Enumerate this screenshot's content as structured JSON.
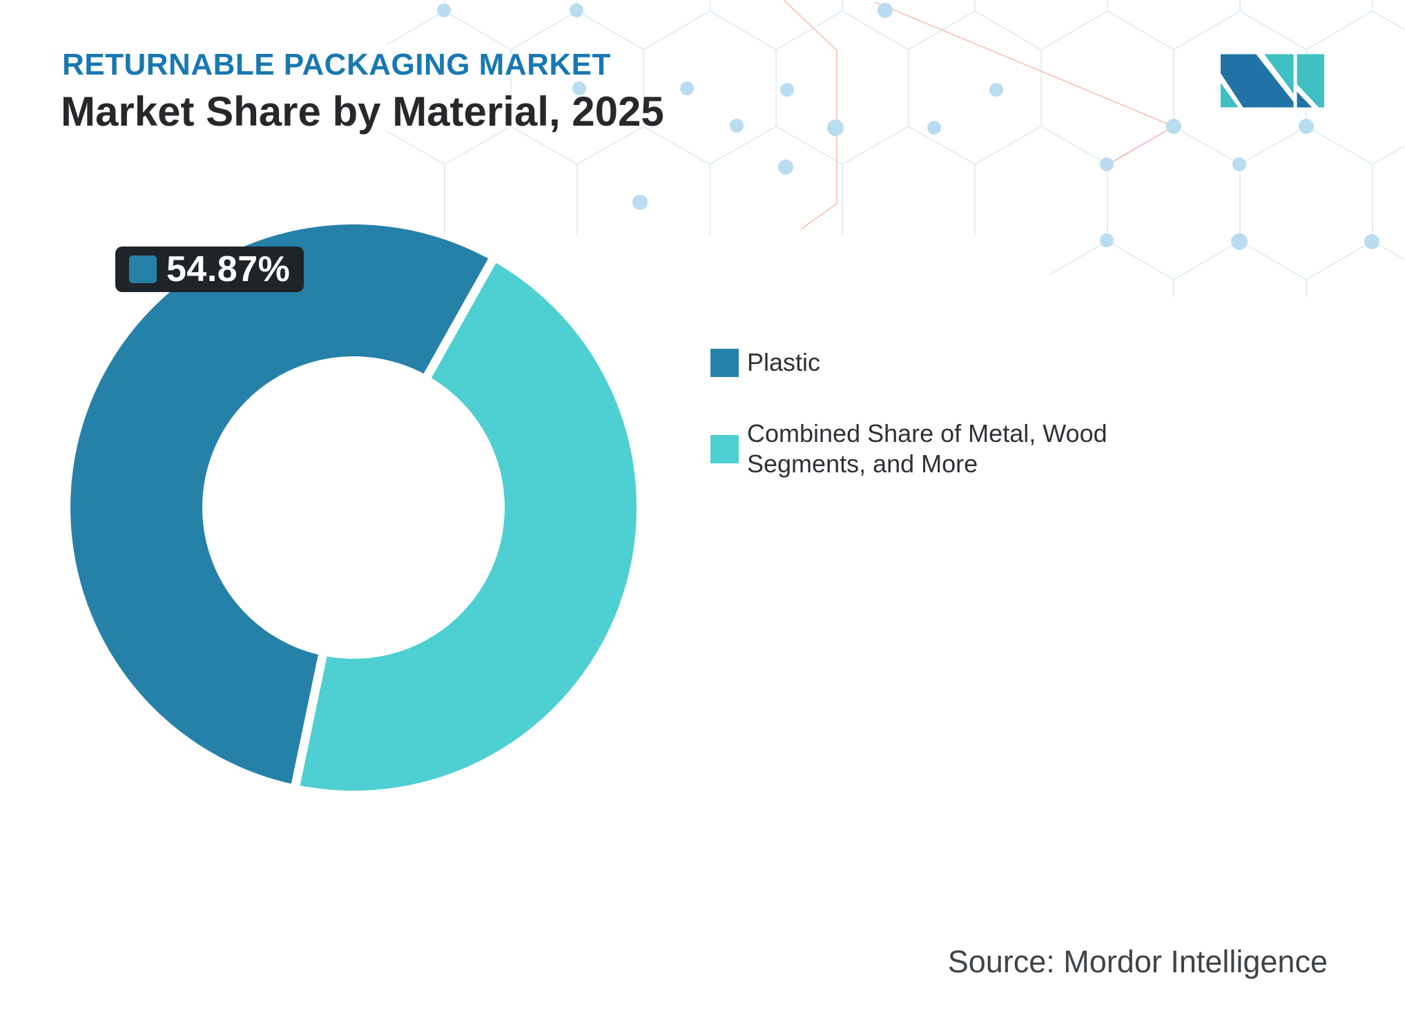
{
  "header": {
    "title": "RETURNABLE PACKAGING MARKET",
    "subtitle": "Market Share by Material, 2025",
    "title_color": "#1878B2",
    "subtitle_color": "#26282B"
  },
  "logo": {
    "name": "mordor-intelligence-logo",
    "blue": "#2173A6",
    "teal": "#3FBFC1"
  },
  "chart_data": {
    "type": "pie",
    "subtype": "donut",
    "title": "Market Share by Material, 2025",
    "unit": "%",
    "start_angle_deg": 191.8,
    "inner_radius_ratio": 0.53,
    "legend_position": "right",
    "segments": [
      {
        "label": "Plastic",
        "value": 54.87,
        "color": "#2681A9"
      },
      {
        "label": "Combined Share of Metal, Wood Segments, and More",
        "value": 45.13,
        "color": "#4ECFD1"
      }
    ],
    "data_labels": [
      {
        "segment": "Plastic",
        "text": "54.87%"
      }
    ]
  },
  "source": {
    "text": "Source: Mordor Intelligence"
  }
}
